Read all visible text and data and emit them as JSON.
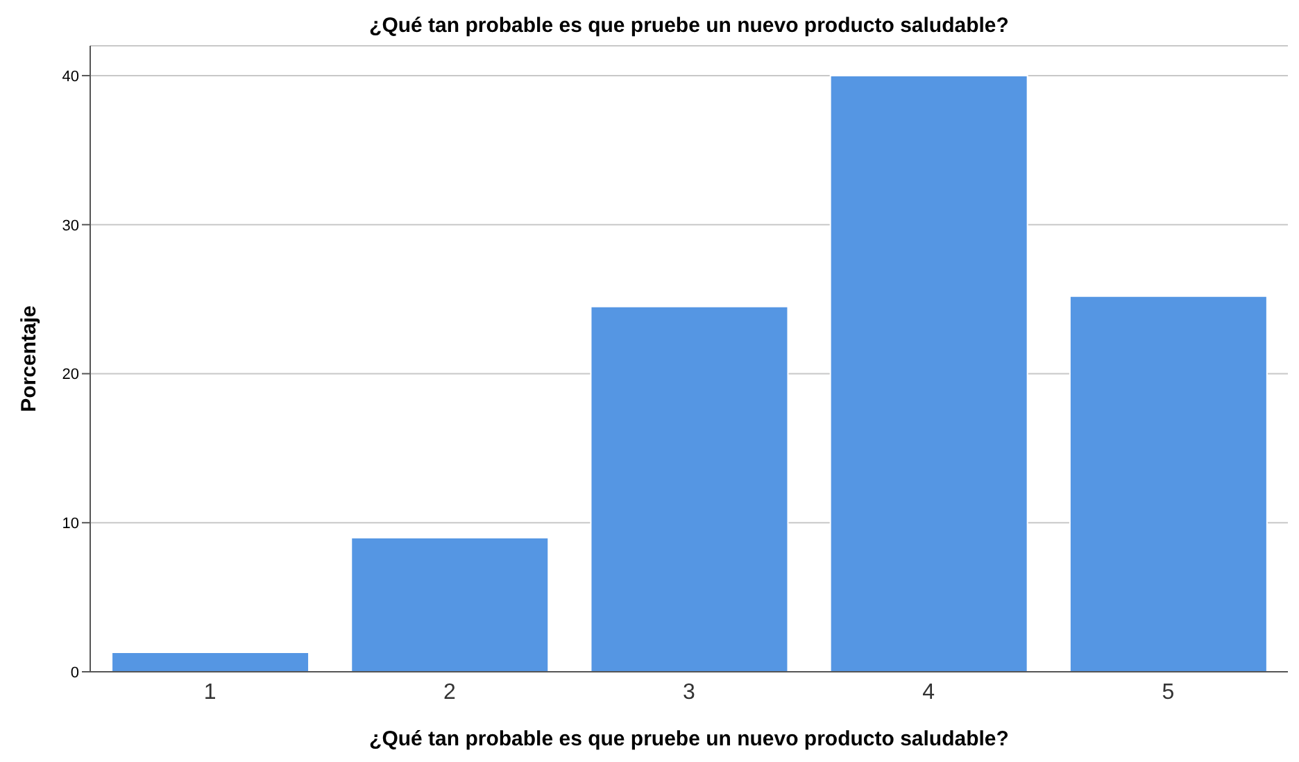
{
  "chart_data": {
    "type": "bar",
    "title": "¿Qué tan probable es que pruebe un nuevo producto saludable?",
    "xlabel": "¿Qué tan probable es que pruebe un nuevo producto saludable?",
    "ylabel": "Porcentaje",
    "categories": [
      "1",
      "2",
      "3",
      "4",
      "5"
    ],
    "values": [
      1.3,
      9.0,
      24.5,
      40.0,
      25.2
    ],
    "color": "#5596e3",
    "ylim": [
      0,
      42
    ],
    "yticks": [
      0,
      10,
      20,
      30,
      40
    ],
    "grid": "y"
  }
}
